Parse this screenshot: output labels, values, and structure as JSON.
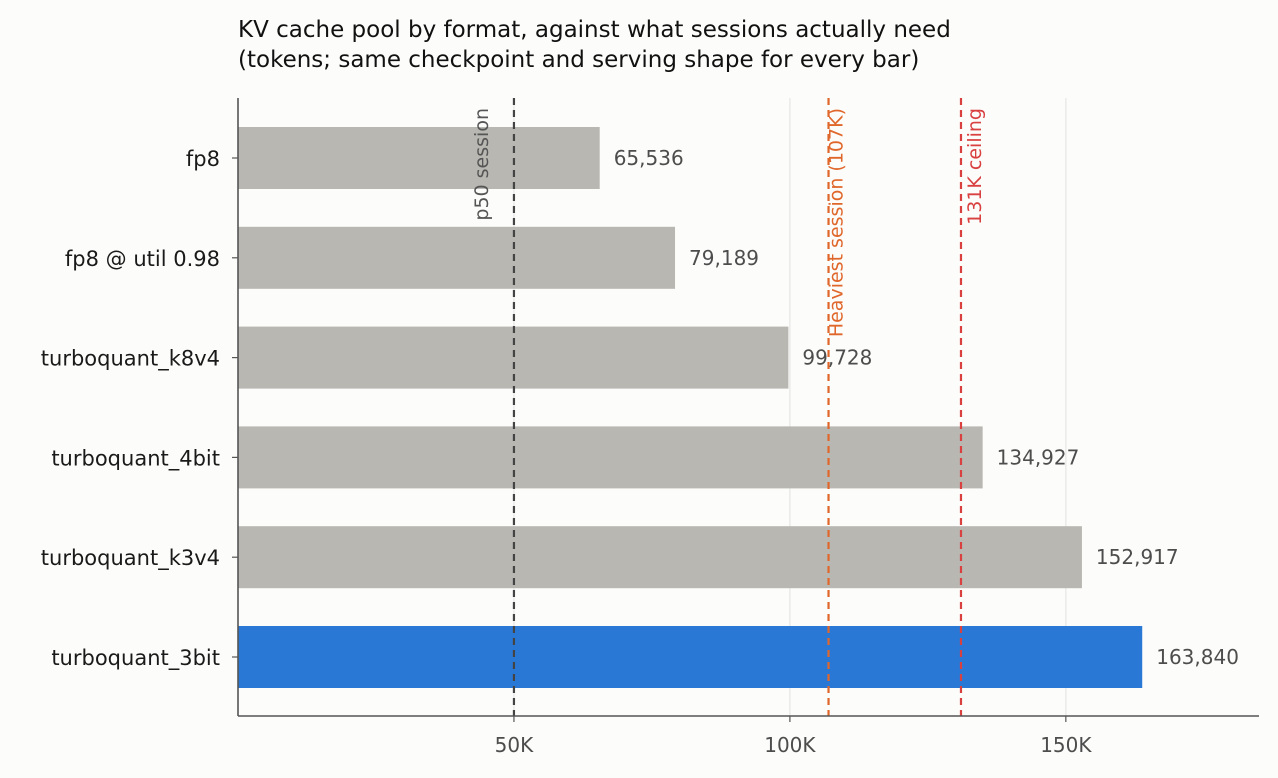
{
  "chart_data": {
    "type": "bar",
    "orientation": "horizontal",
    "title_lines": [
      "KV cache pool by format, against what sessions actually need",
      "(tokens; same checkpoint and serving shape for every bar)"
    ],
    "xlabel": "",
    "ylabel": "",
    "xlim": [
      0,
      185000
    ],
    "xticks": [
      50000,
      100000,
      150000
    ],
    "xtick_labels": [
      "50K",
      "100K",
      "150K"
    ],
    "grid": "vertical",
    "categories": [
      "fp8",
      "fp8 @ util 0.98",
      "turboquant_k8v4",
      "turboquant_4bit",
      "turboquant_k3v4",
      "turboquant_3bit"
    ],
    "values": [
      65536,
      79189,
      99728,
      134927,
      152917,
      163840
    ],
    "value_labels": [
      "65,536",
      "79,189",
      "99,728",
      "134,927",
      "152,917",
      "163,840"
    ],
    "highlight_index": 5,
    "reference_lines": [
      {
        "label": "p50 session",
        "x": 50000,
        "color": "#444444",
        "label_color": "#555555"
      },
      {
        "label": "Heaviest session (107K)",
        "x": 107000,
        "color": "#e0672b",
        "label_color": "#e0672b"
      },
      {
        "label": "131K ceiling",
        "x": 131000,
        "color": "#d94040",
        "label_color": "#d94040"
      }
    ],
    "colors": {
      "bar": "#b8b7b2",
      "highlight": "#2a78d6",
      "grid": "#e6e6e4",
      "axis": "#555555",
      "value_text": "#4d4d4d",
      "tick_text": "#4d4d4d",
      "category_text": "#1a1a1a",
      "title_text": "#111111"
    }
  }
}
